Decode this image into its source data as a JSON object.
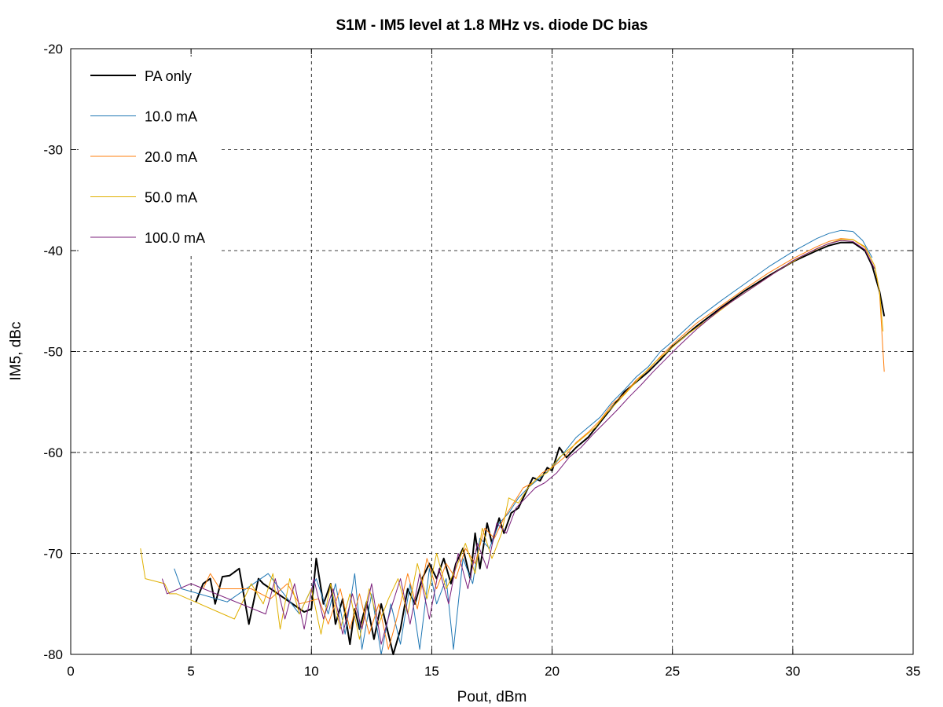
{
  "chart_data": {
    "type": "line",
    "title": "S1M - IM5 level at 1.8 MHz vs. diode DC bias",
    "xlabel": "Pout, dBm",
    "ylabel": "IM5, dBc",
    "xlim": [
      0,
      35
    ],
    "ylim": [
      -80,
      -20
    ],
    "xticks": [
      "0",
      "5",
      "10",
      "15",
      "20",
      "25",
      "30",
      "35"
    ],
    "yticks": [
      "-20",
      "-30",
      "-40",
      "-50",
      "-60",
      "-70",
      "-80"
    ],
    "grid": true,
    "legend_position": "top-left",
    "series": [
      {
        "name": "PA only",
        "color": "#000000",
        "width": 2,
        "points": [
          [
            5.2,
            -74.8
          ],
          [
            5.5,
            -73
          ],
          [
            5.8,
            -72.5
          ],
          [
            6.0,
            -75
          ],
          [
            6.3,
            -72.3
          ],
          [
            6.6,
            -72.2
          ],
          [
            7.0,
            -71.5
          ],
          [
            7.4,
            -77
          ],
          [
            7.8,
            -72.5
          ],
          [
            8.0,
            -73
          ],
          [
            9.7,
            -75.8
          ],
          [
            10.0,
            -75.5
          ],
          [
            10.2,
            -70.5
          ],
          [
            10.5,
            -75
          ],
          [
            10.8,
            -73
          ],
          [
            11.0,
            -77
          ],
          [
            11.3,
            -74.5
          ],
          [
            11.6,
            -79
          ],
          [
            11.8,
            -75.5
          ],
          [
            12.0,
            -77.5
          ],
          [
            12.3,
            -74.8
          ],
          [
            12.6,
            -78.5
          ],
          [
            12.9,
            -75
          ],
          [
            13.1,
            -77
          ],
          [
            13.4,
            -80
          ],
          [
            13.7,
            -77.5
          ],
          [
            14.0,
            -73.5
          ],
          [
            14.3,
            -75
          ],
          [
            14.6,
            -72.5
          ],
          [
            14.9,
            -71
          ],
          [
            15.2,
            -72.5
          ],
          [
            15.5,
            -70.5
          ],
          [
            15.8,
            -73
          ],
          [
            16.0,
            -71
          ],
          [
            16.3,
            -69.5
          ],
          [
            16.6,
            -72.5
          ],
          [
            16.8,
            -68
          ],
          [
            17.0,
            -71.5
          ],
          [
            17.3,
            -67
          ],
          [
            17.5,
            -69
          ],
          [
            17.8,
            -66.5
          ],
          [
            18.0,
            -68
          ],
          [
            18.3,
            -66
          ],
          [
            18.6,
            -65.5
          ],
          [
            18.9,
            -64
          ],
          [
            19.2,
            -62.5
          ],
          [
            19.5,
            -62.8
          ],
          [
            19.8,
            -61.5
          ],
          [
            20.0,
            -61.8
          ],
          [
            20.3,
            -59.5
          ],
          [
            20.6,
            -60.5
          ],
          [
            21,
            -59.5
          ],
          [
            21.5,
            -58.5
          ],
          [
            22,
            -57
          ],
          [
            22.5,
            -55.5
          ],
          [
            23,
            -54
          ],
          [
            23.5,
            -53
          ],
          [
            24,
            -52
          ],
          [
            24.5,
            -50.8
          ],
          [
            25,
            -49.5
          ],
          [
            26,
            -47.5
          ],
          [
            27,
            -45.7
          ],
          [
            28,
            -44
          ],
          [
            29,
            -42.5
          ],
          [
            30,
            -41.1
          ],
          [
            31,
            -40
          ],
          [
            31.5,
            -39.5
          ],
          [
            32,
            -39.2
          ],
          [
            32.5,
            -39.2
          ],
          [
            33.0,
            -40
          ],
          [
            33.3,
            -41.5
          ],
          [
            33.6,
            -44
          ],
          [
            33.8,
            -46.5
          ]
        ]
      },
      {
        "name": "10.0 mA",
        "color": "#1f77b4",
        "width": 1,
        "points": [
          [
            4.3,
            -71.5
          ],
          [
            4.6,
            -73.5
          ],
          [
            6.5,
            -74.8
          ],
          [
            8.2,
            -72
          ],
          [
            9.5,
            -76
          ],
          [
            10.2,
            -72.5
          ],
          [
            10.7,
            -76
          ],
          [
            11.0,
            -73
          ],
          [
            11.4,
            -78
          ],
          [
            11.8,
            -72
          ],
          [
            12.1,
            -79.5
          ],
          [
            12.5,
            -74
          ],
          [
            12.9,
            -80
          ],
          [
            13.3,
            -75
          ],
          [
            13.7,
            -79
          ],
          [
            14.1,
            -73
          ],
          [
            14.5,
            -79.5
          ],
          [
            14.9,
            -71.5
          ],
          [
            15.2,
            -75
          ],
          [
            15.6,
            -72.5
          ],
          [
            15.9,
            -79.5
          ],
          [
            16.3,
            -70.5
          ],
          [
            16.7,
            -73
          ],
          [
            17.0,
            -68.5
          ],
          [
            17.4,
            -69.5
          ],
          [
            17.8,
            -67
          ],
          [
            18.2,
            -66
          ],
          [
            18.6,
            -64.5
          ],
          [
            19.0,
            -63.5
          ],
          [
            19.5,
            -62.5
          ],
          [
            20.0,
            -61.5
          ],
          [
            20.5,
            -60
          ],
          [
            21.0,
            -58.5
          ],
          [
            21.5,
            -57.5
          ],
          [
            22,
            -56.5
          ],
          [
            22.5,
            -55
          ],
          [
            23,
            -53.8
          ],
          [
            23.5,
            -52.5
          ],
          [
            24,
            -51.5
          ],
          [
            24.5,
            -50
          ],
          [
            25,
            -49
          ],
          [
            26,
            -46.8
          ],
          [
            27,
            -45
          ],
          [
            28,
            -43.3
          ],
          [
            29,
            -41.6
          ],
          [
            30,
            -40.1
          ],
          [
            31,
            -38.8
          ],
          [
            31.5,
            -38.3
          ],
          [
            32,
            -38.0
          ],
          [
            32.5,
            -38.1
          ],
          [
            32.9,
            -39
          ],
          [
            33.3,
            -40.7
          ]
        ]
      },
      {
        "name": "20.0 mA",
        "color": "#ff7f0e",
        "width": 1,
        "points": [
          [
            5.5,
            -73.5
          ],
          [
            5.8,
            -72
          ],
          [
            6.2,
            -73.5
          ],
          [
            7.5,
            -73.5
          ],
          [
            8.3,
            -74.5
          ],
          [
            9.0,
            -73
          ],
          [
            9.5,
            -75
          ],
          [
            10.3,
            -74.5
          ],
          [
            10.7,
            -77
          ],
          [
            11.2,
            -73.5
          ],
          [
            11.6,
            -77.5
          ],
          [
            12.0,
            -74
          ],
          [
            12.4,
            -78
          ],
          [
            12.8,
            -75
          ],
          [
            13.2,
            -79.5
          ],
          [
            13.6,
            -76
          ],
          [
            14.0,
            -72
          ],
          [
            14.4,
            -75.5
          ],
          [
            14.8,
            -70.5
          ],
          [
            15.2,
            -73.5
          ],
          [
            15.6,
            -71
          ],
          [
            16.0,
            -72.5
          ],
          [
            16.4,
            -69.5
          ],
          [
            16.8,
            -71
          ],
          [
            17.2,
            -67.5
          ],
          [
            17.6,
            -68.5
          ],
          [
            18.0,
            -66.5
          ],
          [
            18.4,
            -65
          ],
          [
            18.8,
            -63.5
          ],
          [
            19.2,
            -63
          ],
          [
            19.6,
            -62
          ],
          [
            20.0,
            -61.5
          ],
          [
            20.5,
            -60.5
          ],
          [
            21,
            -59
          ],
          [
            21.5,
            -58
          ],
          [
            22,
            -56.8
          ],
          [
            22.5,
            -55.2
          ],
          [
            23,
            -54.2
          ],
          [
            23.5,
            -52.8
          ],
          [
            24,
            -51.8
          ],
          [
            24.5,
            -50.5
          ],
          [
            25,
            -49.3
          ],
          [
            26,
            -47.2
          ],
          [
            27,
            -45.5
          ],
          [
            28,
            -43.8
          ],
          [
            29,
            -42.2
          ],
          [
            30,
            -40.8
          ],
          [
            31,
            -39.6
          ],
          [
            31.5,
            -39.1
          ],
          [
            32,
            -38.8
          ],
          [
            32.5,
            -38.9
          ],
          [
            33.0,
            -39.7
          ],
          [
            33.4,
            -41.5
          ],
          [
            33.6,
            -44
          ],
          [
            33.8,
            -52
          ]
        ]
      },
      {
        "name": "50.0 mA",
        "color": "#e0b000",
        "width": 1,
        "points": [
          [
            2.9,
            -69.5
          ],
          [
            3.1,
            -72.5
          ],
          [
            3.9,
            -73
          ],
          [
            4.1,
            -74
          ],
          [
            4.4,
            -74
          ],
          [
            6.8,
            -76.5
          ],
          [
            7.5,
            -73
          ],
          [
            8.0,
            -75
          ],
          [
            8.4,
            -72
          ],
          [
            8.7,
            -77.5
          ],
          [
            9.1,
            -72.5
          ],
          [
            9.5,
            -76
          ],
          [
            10.0,
            -73.5
          ],
          [
            10.4,
            -78
          ],
          [
            10.8,
            -73
          ],
          [
            11.2,
            -77.5
          ],
          [
            11.6,
            -74
          ],
          [
            12.0,
            -78.5
          ],
          [
            12.4,
            -73.5
          ],
          [
            12.8,
            -77
          ],
          [
            13.2,
            -74.5
          ],
          [
            13.6,
            -72.5
          ],
          [
            14.0,
            -76
          ],
          [
            14.4,
            -71
          ],
          [
            14.8,
            -74.5
          ],
          [
            15.2,
            -70
          ],
          [
            15.6,
            -73.5
          ],
          [
            16.0,
            -71.5
          ],
          [
            16.4,
            -69
          ],
          [
            16.8,
            -72
          ],
          [
            17.1,
            -67.5
          ],
          [
            17.5,
            -70.5
          ],
          [
            17.9,
            -68
          ],
          [
            18.2,
            -64.5
          ],
          [
            18.6,
            -65
          ],
          [
            19.0,
            -63.5
          ],
          [
            19.4,
            -62.5
          ],
          [
            19.8,
            -62
          ],
          [
            20.3,
            -60.5
          ],
          [
            20.8,
            -59.5
          ],
          [
            21.3,
            -58.5
          ],
          [
            21.8,
            -57.5
          ],
          [
            22.3,
            -56
          ],
          [
            22.8,
            -54.8
          ],
          [
            23.3,
            -53.5
          ],
          [
            23.8,
            -52.2
          ],
          [
            24.3,
            -51
          ],
          [
            24.8,
            -50
          ],
          [
            25.5,
            -48.5
          ],
          [
            26.5,
            -46.8
          ],
          [
            27.5,
            -45
          ],
          [
            28.5,
            -43.4
          ],
          [
            29.5,
            -41.8
          ],
          [
            30.5,
            -40.4
          ],
          [
            31.5,
            -39.3
          ],
          [
            32,
            -38.9
          ],
          [
            32.5,
            -38.9
          ],
          [
            33.0,
            -39.6
          ],
          [
            33.4,
            -41.5
          ],
          [
            33.6,
            -44
          ],
          [
            33.75,
            -48
          ]
        ]
      },
      {
        "name": "100.0 mA",
        "color": "#7b1f7b",
        "width": 1,
        "points": [
          [
            3.8,
            -72.5
          ],
          [
            4.0,
            -74
          ],
          [
            5.0,
            -73
          ],
          [
            8.1,
            -76
          ],
          [
            8.5,
            -72.5
          ],
          [
            8.9,
            -76.5
          ],
          [
            9.3,
            -73
          ],
          [
            9.7,
            -77.5
          ],
          [
            10.1,
            -72.5
          ],
          [
            10.5,
            -76.5
          ],
          [
            10.9,
            -73.5
          ],
          [
            11.3,
            -78
          ],
          [
            11.7,
            -74
          ],
          [
            12.1,
            -77.5
          ],
          [
            12.5,
            -73
          ],
          [
            12.9,
            -79
          ],
          [
            13.3,
            -75.5
          ],
          [
            13.7,
            -72.5
          ],
          [
            14.1,
            -77
          ],
          [
            14.5,
            -72
          ],
          [
            14.9,
            -76.5
          ],
          [
            15.3,
            -71.5
          ],
          [
            15.7,
            -75
          ],
          [
            16.1,
            -70
          ],
          [
            16.5,
            -73.5
          ],
          [
            16.9,
            -69
          ],
          [
            17.3,
            -71.5
          ],
          [
            17.7,
            -67
          ],
          [
            18.1,
            -68
          ],
          [
            18.5,
            -65.5
          ],
          [
            18.9,
            -64.5
          ],
          [
            19.3,
            -63.5
          ],
          [
            19.7,
            -63
          ],
          [
            20.2,
            -62
          ],
          [
            20.7,
            -60.5
          ],
          [
            21.2,
            -59.5
          ],
          [
            21.7,
            -58.2
          ],
          [
            22.2,
            -57
          ],
          [
            22.7,
            -55.8
          ],
          [
            23.2,
            -54.5
          ],
          [
            23.7,
            -53.3
          ],
          [
            24.2,
            -52
          ],
          [
            24.7,
            -50.8
          ],
          [
            25.2,
            -49.6
          ],
          [
            26,
            -47.8
          ],
          [
            27,
            -45.8
          ],
          [
            28,
            -44.2
          ],
          [
            29,
            -42.6
          ],
          [
            30,
            -41
          ],
          [
            31,
            -39.8
          ],
          [
            31.5,
            -39.3
          ],
          [
            32,
            -39.0
          ],
          [
            32.5,
            -39.1
          ],
          [
            33.0,
            -39.9
          ],
          [
            33.4,
            -41.8
          ]
        ]
      }
    ]
  }
}
